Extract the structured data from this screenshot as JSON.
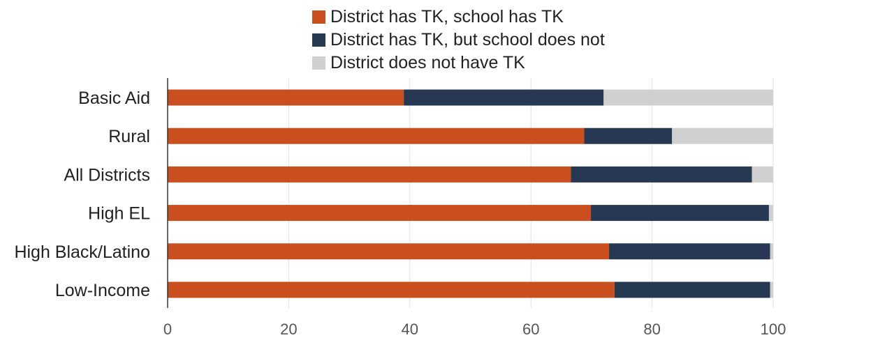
{
  "chart_data": {
    "type": "bar",
    "orientation": "horizontal",
    "stacked": true,
    "categories": [
      "Basic Aid",
      "Rural",
      "All Districts",
      "High EL",
      "High Black/Latino",
      "Low-Income"
    ],
    "series": [
      {
        "name": "District has TK, school has TK",
        "color": "#c94f1e",
        "values": [
          39,
          68.8,
          66.6,
          69.9,
          72.9,
          73.8
        ]
      },
      {
        "name": "District has TK, but school does not",
        "color": "#263852",
        "values": [
          33,
          14.5,
          29.9,
          29.4,
          26.6,
          25.7
        ]
      },
      {
        "name": "District does not have TK",
        "color": "#d0d0d0",
        "values": [
          28,
          16.7,
          3.5,
          0.7,
          0.5,
          0.5
        ]
      }
    ],
    "xlim": [
      0,
      100
    ],
    "xticks": [
      0,
      20,
      40,
      60,
      80,
      100
    ],
    "title": "",
    "xlabel": "",
    "ylabel": "",
    "grid": "vertical",
    "legend_position": "top"
  }
}
